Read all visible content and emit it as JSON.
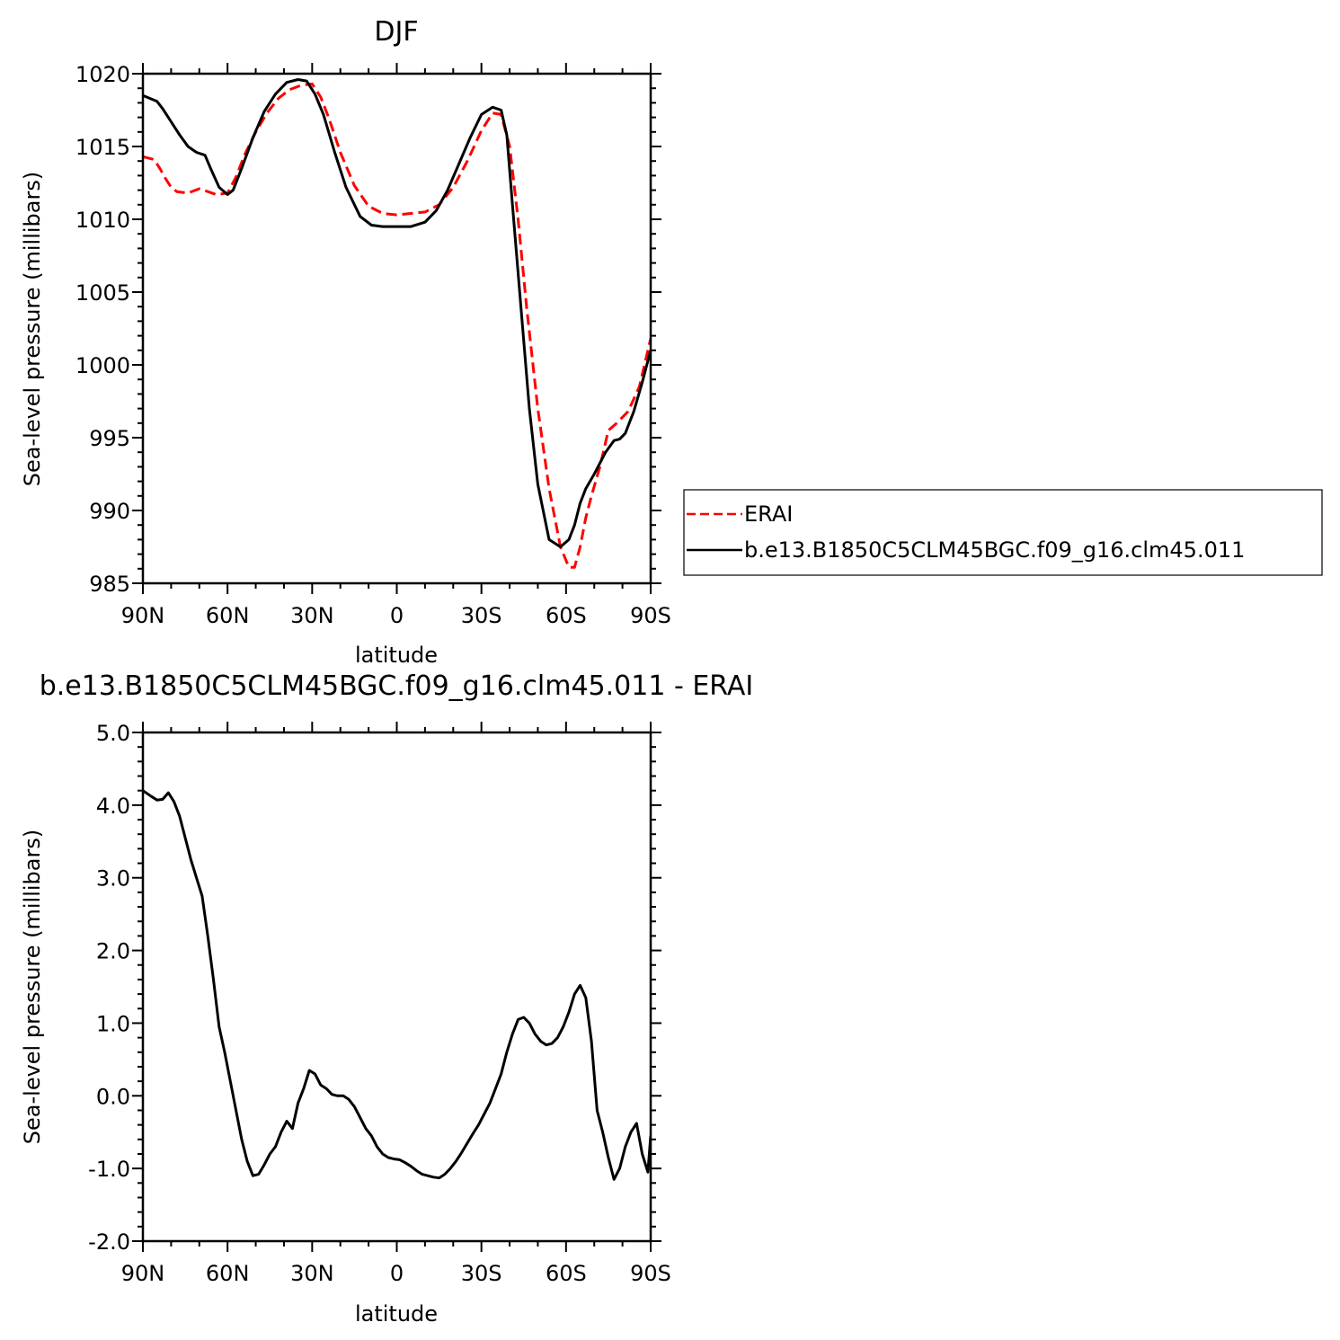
{
  "chart_data": [
    {
      "type": "line",
      "title": "DJF",
      "xlabel": "latitude",
      "ylabel": "Sea-level pressure (millibars)",
      "xlim": [
        -90,
        90
      ],
      "ylim": [
        985,
        1020
      ],
      "x_ticks": [
        -90,
        -60,
        -30,
        0,
        30,
        60,
        90
      ],
      "x_tick_labels": [
        "90N",
        "60N",
        "30N",
        "0",
        "30S",
        "60S",
        "90S"
      ],
      "y_ticks": [
        985,
        990,
        995,
        1000,
        1005,
        1010,
        1015,
        1020
      ],
      "y_tick_labels": [
        "985",
        "990",
        "995",
        "1000",
        "1005",
        "1010",
        "1015",
        "1020"
      ],
      "legend_position": "right",
      "series": [
        {
          "name": "ERAI",
          "color": "#ff0000",
          "dash": "dashed",
          "x": [
            -90,
            -86,
            -84,
            -82,
            -80,
            -78,
            -74,
            -70,
            -67,
            -64,
            -60,
            -57,
            -54,
            -50,
            -46,
            -42,
            -38,
            -34,
            -30,
            -27,
            -24,
            -20,
            -15,
            -10,
            -5,
            0,
            5,
            10,
            15,
            20,
            25,
            30,
            34,
            37,
            40,
            43,
            46,
            50,
            54,
            58,
            61,
            63,
            65,
            67,
            69,
            72,
            75,
            78,
            82,
            86,
            90
          ],
          "y": [
            1014.3,
            1014.1,
            1013.5,
            1012.8,
            1012.2,
            1011.9,
            1011.8,
            1012.1,
            1011.9,
            1011.7,
            1011.8,
            1012.9,
            1014.4,
            1016.0,
            1017.3,
            1018.3,
            1018.9,
            1019.2,
            1019.3,
            1018.4,
            1016.9,
            1014.6,
            1012.3,
            1010.9,
            1010.4,
            1010.3,
            1010.4,
            1010.5,
            1011.0,
            1012.2,
            1014.0,
            1016.1,
            1017.3,
            1017.2,
            1015.0,
            1010.0,
            1004.0,
            997.0,
            991.5,
            987.5,
            986.1,
            986.1,
            987.5,
            989.5,
            991.0,
            993.0,
            995.5,
            996.0,
            996.8,
            998.5,
            1001.8
          ]
        },
        {
          "name": "b.e13.B1850C5CLM45BGC.f09_g16.clm45.011",
          "color": "#000000",
          "dash": "solid",
          "x": [
            -90,
            -85,
            -83,
            -80,
            -77,
            -74,
            -71,
            -68,
            -66,
            -63,
            -60,
            -58,
            -55,
            -51,
            -47,
            -43,
            -39,
            -35,
            -32,
            -29,
            -26,
            -22,
            -18,
            -13,
            -9,
            -5,
            0,
            5,
            10,
            14,
            18,
            22,
            26,
            30,
            34,
            37,
            39,
            41,
            44,
            47,
            50,
            54,
            58,
            61,
            63,
            65,
            67,
            70,
            74,
            77,
            79,
            81,
            84,
            87,
            90
          ],
          "y": [
            1018.5,
            1018.1,
            1017.6,
            1016.7,
            1015.8,
            1015.0,
            1014.6,
            1014.4,
            1013.5,
            1012.2,
            1011.7,
            1012.0,
            1013.5,
            1015.6,
            1017.4,
            1018.6,
            1019.4,
            1019.6,
            1019.5,
            1018.6,
            1017.2,
            1014.6,
            1012.2,
            1010.2,
            1009.6,
            1009.5,
            1009.5,
            1009.5,
            1009.8,
            1010.6,
            1012.0,
            1013.8,
            1015.6,
            1017.2,
            1017.7,
            1017.5,
            1015.8,
            1011.0,
            1004.0,
            997.0,
            991.8,
            988.0,
            987.5,
            988.0,
            989.0,
            990.5,
            991.5,
            992.5,
            994.0,
            994.8,
            994.9,
            995.3,
            996.8,
            998.8,
            1001.0
          ]
        }
      ]
    },
    {
      "type": "line",
      "title": "b.e13.B1850C5CLM45BGC.f09_g16.clm45.011 - ERAI",
      "xlabel": "latitude",
      "ylabel": "Sea-level pressure (millibars)",
      "xlim": [
        -90,
        90
      ],
      "ylim": [
        -2.0,
        5.0
      ],
      "x_ticks": [
        -90,
        -60,
        -30,
        0,
        30,
        60,
        90
      ],
      "x_tick_labels": [
        "90N",
        "60N",
        "30N",
        "0",
        "30S",
        "60S",
        "90S"
      ],
      "y_ticks": [
        -2.0,
        -1.0,
        0.0,
        1.0,
        2.0,
        3.0,
        4.0,
        5.0
      ],
      "y_tick_labels": [
        "-2.0",
        "-1.0",
        "0.0",
        "1.0",
        "2.0",
        "3.0",
        "4.0",
        "5.0"
      ],
      "series": [
        {
          "color": "#000000",
          "dash": "solid",
          "x": [
            -90,
            -87,
            -85,
            -83,
            -81,
            -79,
            -77,
            -75,
            -73,
            -71,
            -69,
            -67,
            -65,
            -63,
            -61,
            -59,
            -57,
            -55,
            -53,
            -51,
            -49,
            -47,
            -45,
            -43,
            -41,
            -39,
            -37,
            -35,
            -33,
            -31,
            -29,
            -27,
            -25,
            -23,
            -21,
            -19,
            -17,
            -15,
            -13,
            -11,
            -9,
            -7,
            -5,
            -3,
            -1,
            1,
            3,
            5,
            7,
            9,
            11,
            13,
            15,
            17,
            19,
            21,
            23,
            25,
            27,
            29,
            31,
            33,
            35,
            37,
            39,
            41,
            43,
            45,
            47,
            49,
            51,
            53,
            55,
            57,
            59,
            61,
            63,
            65,
            67,
            69,
            71,
            73,
            75,
            77,
            79,
            81,
            83,
            85,
            87,
            89,
            90
          ],
          "y": [
            4.2,
            4.12,
            4.07,
            4.08,
            4.17,
            4.05,
            3.85,
            3.55,
            3.25,
            3.0,
            2.75,
            2.2,
            1.6,
            0.95,
            0.6,
            0.2,
            -0.2,
            -0.6,
            -0.9,
            -1.1,
            -1.08,
            -0.95,
            -0.8,
            -0.7,
            -0.5,
            -0.35,
            -0.45,
            -0.1,
            0.1,
            0.35,
            0.3,
            0.15,
            0.1,
            0.02,
            0.0,
            0.0,
            -0.05,
            -0.15,
            -0.3,
            -0.45,
            -0.55,
            -0.7,
            -0.8,
            -0.85,
            -0.87,
            -0.88,
            -0.92,
            -0.97,
            -1.03,
            -1.08,
            -1.1,
            -1.12,
            -1.13,
            -1.08,
            -1.0,
            -0.9,
            -0.78,
            -0.65,
            -0.52,
            -0.4,
            -0.25,
            -0.1,
            0.1,
            0.3,
            0.6,
            0.85,
            1.05,
            1.08,
            1.0,
            0.85,
            0.75,
            0.7,
            0.72,
            0.8,
            0.95,
            1.15,
            1.4,
            1.52,
            1.35,
            0.75,
            -0.2,
            -0.5,
            -0.85,
            -1.15,
            -1.0,
            -0.7,
            -0.5,
            -0.38,
            -0.8,
            -1.05,
            -0.55
          ]
        }
      ]
    }
  ]
}
